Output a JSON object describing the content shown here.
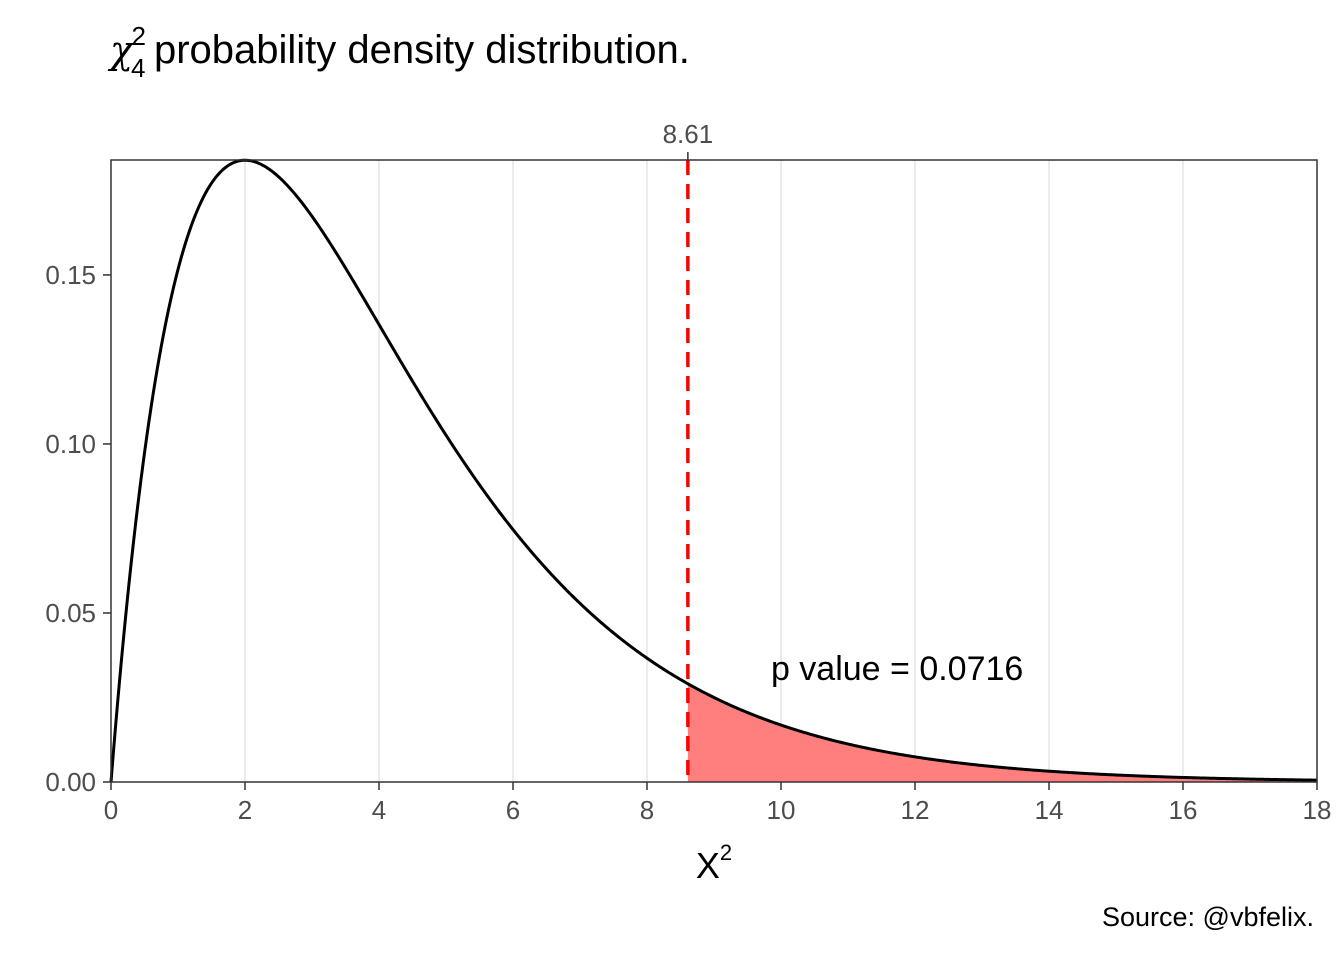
{
  "title": {
    "symbol": "χ",
    "df": "4",
    "power": "2",
    "text": "probability density distribution."
  },
  "caption": "Source: @vbfelix.",
  "chart_data": {
    "type": "area",
    "distribution": "chi-squared",
    "degrees_of_freedom": 4,
    "x": [
      0,
      0.5,
      1,
      1.5,
      2,
      2.5,
      3,
      4,
      5,
      6,
      7,
      8,
      8.61,
      9,
      10,
      11,
      12,
      13,
      14,
      15,
      16,
      17,
      18
    ],
    "y": [
      0,
      0.0974,
      0.1516,
      0.1771,
      0.1839,
      0.1791,
      0.1673,
      0.1353,
      0.1026,
      0.0747,
      0.0528,
      0.0366,
      0.029,
      0.025,
      0.0168,
      0.0112,
      0.0074,
      0.0049,
      0.0032,
      0.0021,
      0.0013,
      0.0009,
      0.0006
    ],
    "critical_value": 8.61,
    "critical_label": "8.61",
    "p_value_label": "p value = 0.0716",
    "xlabel_base": "X",
    "xlabel_sup": "2",
    "ylabel": "",
    "xlim": [
      0,
      18
    ],
    "ylim": [
      0,
      0.184
    ],
    "xticks": [
      0,
      2,
      4,
      6,
      8,
      10,
      12,
      14,
      16,
      18
    ],
    "xtick_labels": [
      "0",
      "2",
      "4",
      "6",
      "8",
      "10",
      "12",
      "14",
      "16",
      "18"
    ],
    "yticks": [
      0,
      0.05,
      0.1,
      0.15
    ],
    "ytick_labels": [
      "0.00",
      "0.05",
      "0.10",
      "0.15"
    ],
    "grid": "vertical",
    "colors": {
      "curve": "#000000",
      "tail_fill": "#ff7f7f",
      "critical_line": "#ff0000",
      "grid": "#ebebeb",
      "axis_text": "#4d4d4d"
    }
  }
}
